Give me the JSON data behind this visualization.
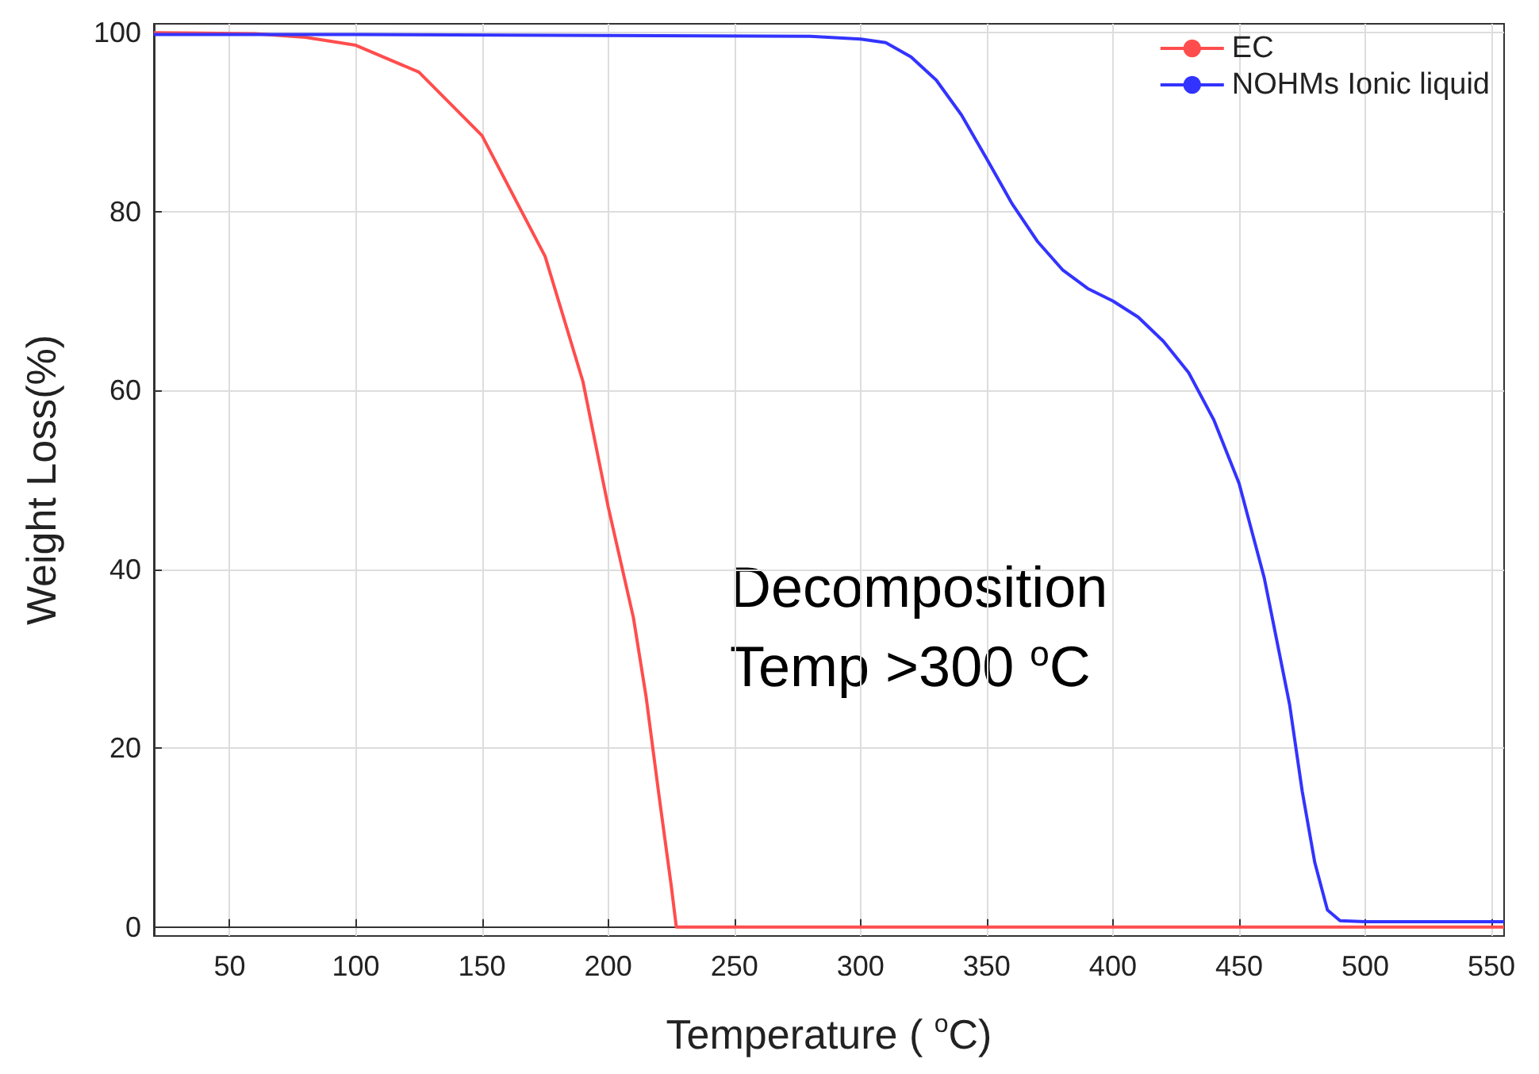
{
  "chart_data": {
    "type": "line",
    "xlabel": "Temperature ( $^{o}$C)",
    "ylabel": "Weight Loss(%)",
    "annotations": [
      "Decomposition\nTemp >300 $^{o}$C"
    ],
    "x": [
      20,
      60,
      80,
      100,
      125,
      150,
      175,
      190,
      200,
      210,
      215,
      220,
      225,
      227,
      300,
      400,
      555
    ],
    "series": [
      {
        "name": "EC",
        "color": "#ff4d4d",
        "values": [
          100,
          99.9,
          99.5,
          98.6,
          95.6,
          88.5,
          75,
          61,
          47,
          34.6,
          25.8,
          15,
          4.6,
          0,
          0,
          0,
          0
        ]
      },
      {
        "name": "NOHMs Ionic liquid",
        "color": "#3333ff",
        "x": [
          20,
          100,
          200,
          280,
          300,
          310,
          320,
          330,
          340,
          350,
          360,
          370,
          380,
          390,
          400,
          410,
          420,
          430,
          440,
          450,
          460,
          470,
          475,
          480,
          485,
          490,
          500,
          555
        ],
        "values": [
          99.8,
          99.8,
          99.7,
          99.6,
          99.3,
          98.9,
          97.3,
          94.7,
          90.8,
          85.9,
          80.9,
          76.7,
          73.5,
          71.4,
          70,
          68.2,
          65.5,
          62,
          56.7,
          49.6,
          39,
          24.9,
          15.2,
          7.2,
          1.9,
          0.7,
          0.6,
          0.6
        ]
      }
    ],
    "xlim": [
      20,
      555
    ],
    "xticks": [
      50,
      100,
      150,
      200,
      250,
      300,
      350,
      400,
      450,
      500,
      550
    ],
    "ylim": [
      -1,
      101
    ],
    "yticks": [
      0,
      20,
      40,
      60,
      80,
      100
    ],
    "grid": true,
    "legend": "top right",
    "marker": "none",
    "line_style": "solid"
  }
}
